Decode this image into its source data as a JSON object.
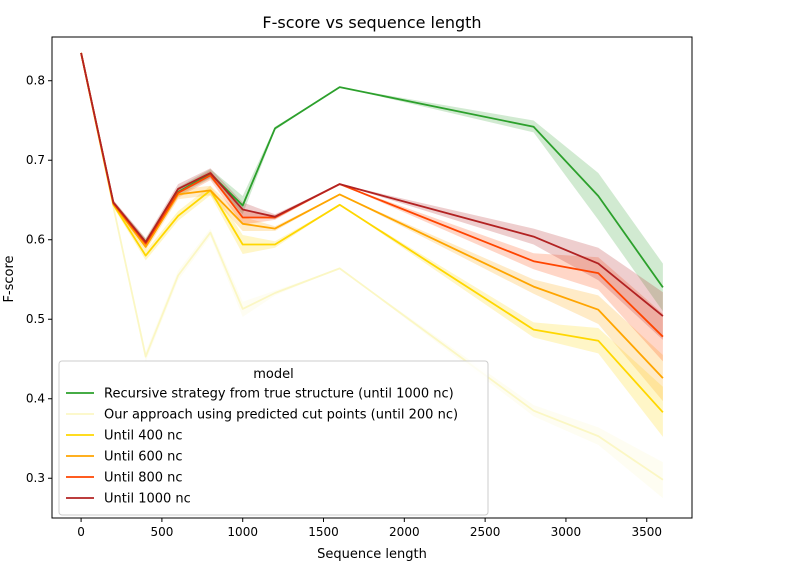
{
  "chart_data": {
    "type": "line",
    "title": "F-score vs sequence length",
    "xlabel": "Sequence length",
    "ylabel": "F-score",
    "xlim": [
      -180,
      3780
    ],
    "ylim": [
      0.25,
      0.855
    ],
    "xticks": [
      0,
      500,
      1000,
      1500,
      2000,
      2500,
      3000,
      3500
    ],
    "yticks": [
      0.3,
      0.4,
      0.5,
      0.6,
      0.7,
      0.8
    ],
    "grid": false,
    "legend": {
      "title": "model",
      "placement": "lower-left"
    },
    "series": [
      {
        "name": "Recursive strategy from true structure (until 1000 nc)",
        "color": "#2ca02c",
        "points": [
          [
            0,
            0.835,
            0.835,
            0.835
          ],
          [
            200,
            0.646,
            0.643,
            0.649
          ],
          [
            400,
            0.597,
            0.594,
            0.601
          ],
          [
            600,
            0.66,
            0.655,
            0.666
          ],
          [
            800,
            0.683,
            0.677,
            0.689
          ],
          [
            1000,
            0.643,
            0.632,
            0.655
          ],
          [
            1200,
            0.74,
            0.738,
            0.742
          ],
          [
            1600,
            0.792,
            0.792,
            0.792
          ],
          [
            2800,
            0.742,
            0.735,
            0.75
          ],
          [
            3200,
            0.655,
            0.625,
            0.684
          ],
          [
            3600,
            0.54,
            0.51,
            0.57
          ]
        ]
      },
      {
        "name": "Our approach using predicted cut points (until 200 nc)",
        "color": "#fbf7c4",
        "points": [
          [
            0,
            0.835,
            0.835,
            0.835
          ],
          [
            200,
            0.641,
            0.638,
            0.644
          ],
          [
            400,
            0.453,
            0.447,
            0.459
          ],
          [
            600,
            0.555,
            0.549,
            0.561
          ],
          [
            800,
            0.609,
            0.604,
            0.614
          ],
          [
            1000,
            0.513,
            0.503,
            0.522
          ],
          [
            1200,
            0.533,
            0.53,
            0.536
          ],
          [
            1600,
            0.564,
            0.564,
            0.564
          ],
          [
            2800,
            0.385,
            0.378,
            0.392
          ],
          [
            3200,
            0.353,
            0.342,
            0.364
          ],
          [
            3600,
            0.298,
            0.275,
            0.32
          ]
        ]
      },
      {
        "name": "Until 400 nc",
        "color": "#ffd700",
        "points": [
          [
            0,
            0.835,
            0.835,
            0.835
          ],
          [
            200,
            0.644,
            0.641,
            0.647
          ],
          [
            400,
            0.58,
            0.574,
            0.586
          ],
          [
            600,
            0.63,
            0.624,
            0.636
          ],
          [
            800,
            0.662,
            0.656,
            0.668
          ],
          [
            1000,
            0.594,
            0.582,
            0.606
          ],
          [
            1200,
            0.594,
            0.59,
            0.598
          ],
          [
            1600,
            0.644,
            0.644,
            0.644
          ],
          [
            2800,
            0.487,
            0.477,
            0.496
          ],
          [
            3200,
            0.473,
            0.457,
            0.489
          ],
          [
            3600,
            0.383,
            0.352,
            0.415
          ]
        ]
      },
      {
        "name": "Until 600 nc",
        "color": "#ffa500",
        "points": [
          [
            0,
            0.835,
            0.835,
            0.835
          ],
          [
            200,
            0.645,
            0.642,
            0.648
          ],
          [
            400,
            0.591,
            0.586,
            0.596
          ],
          [
            600,
            0.657,
            0.651,
            0.663
          ],
          [
            800,
            0.662,
            0.656,
            0.668
          ],
          [
            1000,
            0.62,
            0.611,
            0.629
          ],
          [
            1200,
            0.614,
            0.611,
            0.617
          ],
          [
            1600,
            0.657,
            0.657,
            0.657
          ],
          [
            2800,
            0.541,
            0.532,
            0.55
          ],
          [
            3200,
            0.512,
            0.494,
            0.53
          ],
          [
            3600,
            0.426,
            0.397,
            0.455
          ]
        ]
      },
      {
        "name": "Until 800 nc",
        "color": "#ff4500",
        "points": [
          [
            0,
            0.835,
            0.835,
            0.835
          ],
          [
            200,
            0.646,
            0.643,
            0.649
          ],
          [
            400,
            0.595,
            0.59,
            0.6
          ],
          [
            600,
            0.659,
            0.653,
            0.665
          ],
          [
            800,
            0.681,
            0.675,
            0.687
          ],
          [
            1000,
            0.628,
            0.619,
            0.637
          ],
          [
            1200,
            0.628,
            0.625,
            0.631
          ],
          [
            1600,
            0.67,
            0.67,
            0.67
          ],
          [
            2800,
            0.573,
            0.563,
            0.583
          ],
          [
            3200,
            0.558,
            0.537,
            0.578
          ],
          [
            3600,
            0.478,
            0.447,
            0.507
          ]
        ]
      },
      {
        "name": "Until 1000 nc",
        "color": "#b22222",
        "points": [
          [
            0,
            0.835,
            0.835,
            0.835
          ],
          [
            200,
            0.647,
            0.644,
            0.65
          ],
          [
            400,
            0.597,
            0.592,
            0.602
          ],
          [
            600,
            0.664,
            0.658,
            0.67
          ],
          [
            800,
            0.684,
            0.678,
            0.69
          ],
          [
            1000,
            0.638,
            0.629,
            0.647
          ],
          [
            1200,
            0.629,
            0.626,
            0.632
          ],
          [
            1600,
            0.67,
            0.67,
            0.67
          ],
          [
            2800,
            0.604,
            0.594,
            0.614
          ],
          [
            3200,
            0.57,
            0.549,
            0.59
          ],
          [
            3600,
            0.504,
            0.474,
            0.534
          ]
        ]
      }
    ]
  }
}
